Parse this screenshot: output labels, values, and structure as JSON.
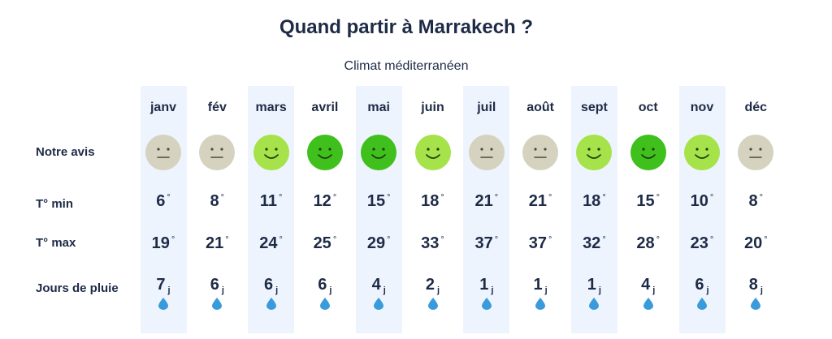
{
  "title": "Quand partir à Marrakech ?",
  "subtitle": "Climat méditerranéen",
  "row_labels": {
    "avis": "Notre avis",
    "tmin": "T° min",
    "tmax": "T° max",
    "pluie": "Jours de pluie"
  },
  "units": {
    "degree": "°",
    "days": "j"
  },
  "colors": {
    "neutral": "#d6d2c0",
    "good": "#a6e24a",
    "great": "#3fc01c",
    "highlight_column": "#eef4fd"
  },
  "months": [
    {
      "name": "janv",
      "avis": "neutral",
      "tmin": "6",
      "tmax": "19",
      "pluie": "7"
    },
    {
      "name": "fév",
      "avis": "neutral",
      "tmin": "8",
      "tmax": "21",
      "pluie": "6"
    },
    {
      "name": "mars",
      "avis": "good",
      "tmin": "11",
      "tmax": "24",
      "pluie": "6"
    },
    {
      "name": "avril",
      "avis": "great",
      "tmin": "12",
      "tmax": "25",
      "pluie": "6"
    },
    {
      "name": "mai",
      "avis": "great",
      "tmin": "15",
      "tmax": "29",
      "pluie": "4"
    },
    {
      "name": "juin",
      "avis": "good",
      "tmin": "18",
      "tmax": "33",
      "pluie": "2"
    },
    {
      "name": "juil",
      "avis": "neutral",
      "tmin": "21",
      "tmax": "37",
      "pluie": "1"
    },
    {
      "name": "août",
      "avis": "neutral",
      "tmin": "21",
      "tmax": "37",
      "pluie": "1"
    },
    {
      "name": "sept",
      "avis": "good",
      "tmin": "18",
      "tmax": "32",
      "pluie": "1"
    },
    {
      "name": "oct",
      "avis": "great",
      "tmin": "15",
      "tmax": "28",
      "pluie": "4"
    },
    {
      "name": "nov",
      "avis": "good",
      "tmin": "10",
      "tmax": "23",
      "pluie": "6"
    },
    {
      "name": "déc",
      "avis": "neutral",
      "tmin": "8",
      "tmax": "20",
      "pluie": "8"
    }
  ]
}
